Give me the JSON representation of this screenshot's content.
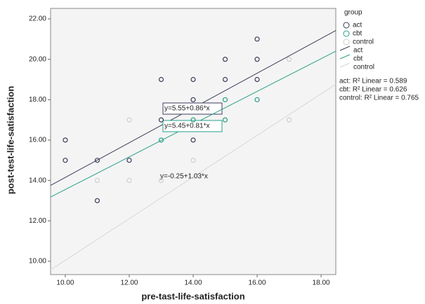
{
  "chart_data": {
    "type": "scatter",
    "x_label": "pre-tast-life-satisfaction",
    "y_label": "post-test-life-satisfaction",
    "legend_title": "group",
    "xlim": [
      9.54,
      18.46
    ],
    "ylim": [
      9.34,
      22.52
    ],
    "xticks": [
      {
        "value": 10,
        "label": "10.00"
      },
      {
        "value": 12,
        "label": "12.00"
      },
      {
        "value": 14,
        "label": "14.00"
      },
      {
        "value": 16,
        "label": "16.00"
      },
      {
        "value": 18,
        "label": "18.00"
      }
    ],
    "yticks": [
      {
        "value": 10,
        "label": "10.00"
      },
      {
        "value": 12,
        "label": "12.00"
      },
      {
        "value": 14,
        "label": "14.00"
      },
      {
        "value": 16,
        "label": "16.00"
      },
      {
        "value": 18,
        "label": "18.00"
      },
      {
        "value": 20,
        "label": "20.00"
      },
      {
        "value": 22,
        "label": "22.00"
      }
    ],
    "series": [
      {
        "name": "act",
        "color": "#3d3d5c",
        "x": [
          10,
          10,
          11,
          11,
          12,
          13,
          13,
          14,
          14,
          14,
          15,
          15,
          16,
          16,
          16
        ],
        "values": [
          16,
          15,
          15,
          13,
          15,
          17,
          19,
          19,
          18,
          16,
          20,
          19,
          21,
          20,
          19
        ]
      },
      {
        "name": "cbt",
        "color": "#2aa089",
        "x": [
          13,
          14,
          15,
          15,
          16
        ],
        "values": [
          16,
          17,
          17,
          18,
          18
        ]
      },
      {
        "name": "control",
        "color": "#cfcfcf",
        "x": [
          11,
          12,
          12,
          13,
          14,
          17,
          17
        ],
        "values": [
          14,
          17,
          14,
          14,
          15,
          20,
          17
        ]
      }
    ],
    "fit_lines": [
      {
        "name": "act",
        "color": "#3d3d5c",
        "intercept": 5.55,
        "slope": 0.86,
        "equation": "y=5.55+0.86*x",
        "r2": "act: R² Linear = 0.589"
      },
      {
        "name": "cbt",
        "color": "#2aa089",
        "intercept": 5.45,
        "slope": 0.81,
        "equation": "y=5.45+0.81*x",
        "r2": "cbt: R² Linear = 0.626"
      },
      {
        "name": "control",
        "color": "#d6d6d6",
        "intercept": -0.25,
        "slope": 1.03,
        "equation": "y=-0.25+1.03*x",
        "r2": "control: R² Linear = 0.765"
      }
    ]
  }
}
